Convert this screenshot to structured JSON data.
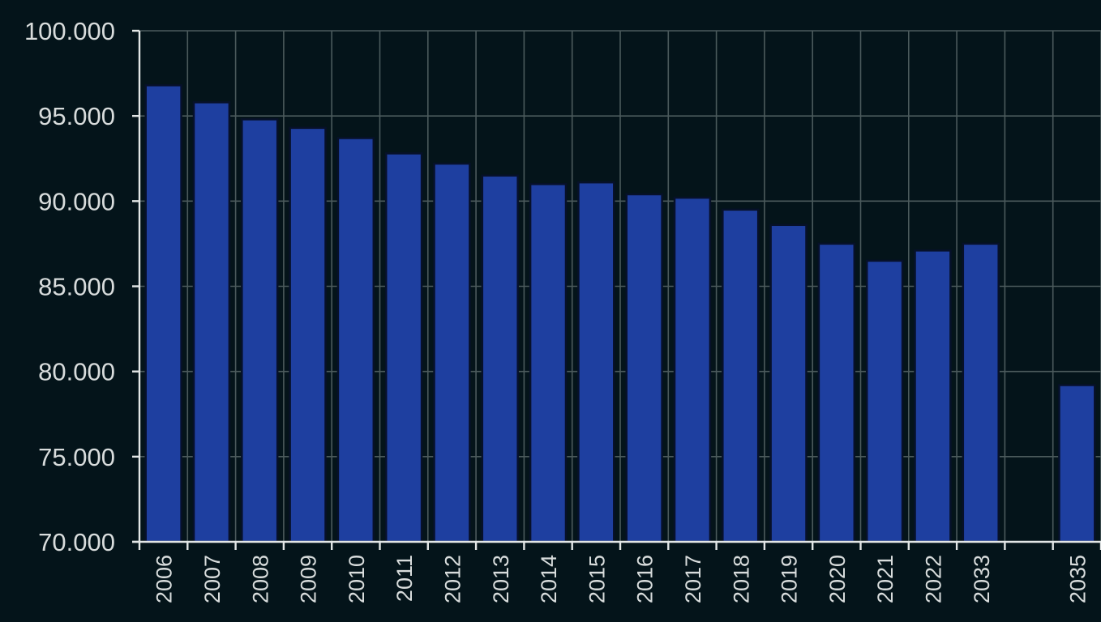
{
  "chart_data": {
    "type": "bar",
    "title": "",
    "xlabel": "",
    "ylabel": "",
    "ylim": [
      70000,
      100000
    ],
    "yticks": [
      "70.000",
      "75.000",
      "80.000",
      "85.000",
      "90.000",
      "95.000",
      "100.000"
    ],
    "ytick_values": [
      70000,
      75000,
      80000,
      85000,
      90000,
      95000,
      100000
    ],
    "grid": true,
    "legend": null,
    "categories": [
      "2006",
      "2007",
      "2008",
      "2009",
      "2010",
      "2011",
      "2012",
      "2013",
      "2014",
      "2015",
      "2016",
      "2017",
      "2018",
      "2019",
      "2020",
      "2021",
      "2022",
      "2033",
      "",
      "2035"
    ],
    "values": [
      96800,
      95800,
      94800,
      94300,
      93700,
      92800,
      92200,
      91500,
      91000,
      91100,
      90400,
      90200,
      89500,
      88600,
      87500,
      86500,
      87100,
      87500,
      null,
      79200
    ],
    "colors": {
      "background": "#04141a",
      "bar": "#1e3fa0",
      "bar_border": "#07112a",
      "grid": "#4b5a5c",
      "axis": "#e2e6e6",
      "text": "#d8dcdc"
    }
  }
}
